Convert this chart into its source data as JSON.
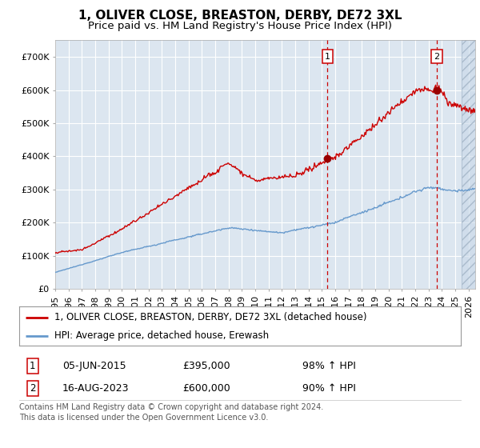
{
  "title": "1, OLIVER CLOSE, BREASTON, DERBY, DE72 3XL",
  "subtitle": "Price paid vs. HM Land Registry's House Price Index (HPI)",
  "ylim": [
    0,
    750000
  ],
  "yticks": [
    0,
    100000,
    200000,
    300000,
    400000,
    500000,
    600000,
    700000
  ],
  "ytick_labels": [
    "£0",
    "£100K",
    "£200K",
    "£300K",
    "£400K",
    "£500K",
    "£600K",
    "£700K"
  ],
  "xlim_start": 1995.0,
  "xlim_end": 2026.5,
  "background_color": "#ffffff",
  "plot_bg_color": "#dce6f0",
  "grid_color": "#ffffff",
  "hpi_color": "#6699cc",
  "price_color": "#cc0000",
  "marker_color": "#990000",
  "sale1_x": 2015.43,
  "sale1_y": 395000,
  "sale1_label": "1",
  "sale2_x": 2023.62,
  "sale2_y": 600000,
  "sale2_label": "2",
  "legend_line1": "1, OLIVER CLOSE, BREASTON, DERBY, DE72 3XL (detached house)",
  "legend_line2": "HPI: Average price, detached house, Erewash",
  "annotation1_date": "05-JUN-2015",
  "annotation1_price": "£395,000",
  "annotation1_hpi": "98% ↑ HPI",
  "annotation2_date": "16-AUG-2023",
  "annotation2_price": "£600,000",
  "annotation2_hpi": "90% ↑ HPI",
  "footer": "Contains HM Land Registry data © Crown copyright and database right 2024.\nThis data is licensed under the Open Government Licence v3.0.",
  "title_fontsize": 11,
  "subtitle_fontsize": 9.5,
  "tick_fontsize": 8,
  "legend_fontsize": 8.5,
  "annotation_fontsize": 9,
  "footer_fontsize": 7
}
